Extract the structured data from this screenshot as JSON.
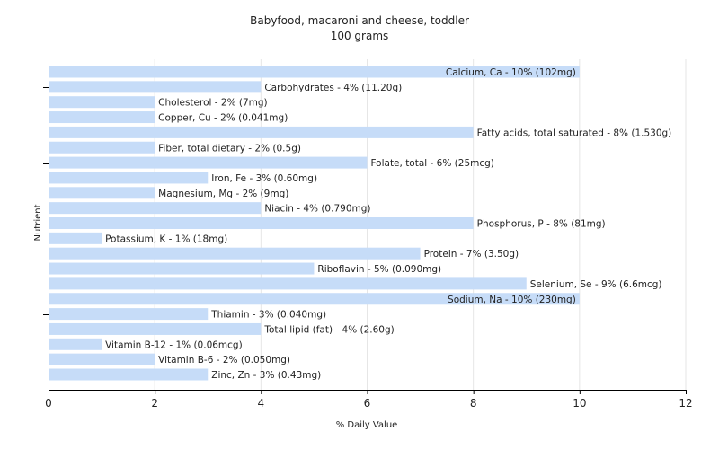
{
  "chart_data": {
    "type": "bar",
    "orientation": "horizontal",
    "title": "Babyfood, macaroni and cheese, toddler",
    "subtitle": "100 grams",
    "xlabel": "% Daily Value",
    "ylabel": "Nutrient",
    "xlim": [
      0,
      12
    ],
    "xticks": [
      "0",
      "2",
      "4",
      "6",
      "8",
      "10",
      "12"
    ],
    "grid": true,
    "bar_color": "#c6dcf8",
    "categories": [
      "Calcium, Ca",
      "Carbohydrates",
      "Cholesterol",
      "Copper, Cu",
      "Fatty acids, total saturated",
      "Fiber, total dietary",
      "Folate, total",
      "Iron, Fe",
      "Magnesium, Mg",
      "Niacin",
      "Phosphorus, P",
      "Potassium, K",
      "Protein",
      "Riboflavin",
      "Selenium, Se",
      "Sodium, Na",
      "Thiamin",
      "Total lipid (fat)",
      "Vitamin B-12",
      "Vitamin B-6",
      "Zinc, Zn"
    ],
    "values": [
      10,
      4,
      2,
      2,
      8,
      2,
      6,
      3,
      2,
      4,
      8,
      1,
      7,
      5,
      9,
      10,
      3,
      4,
      1,
      2,
      3
    ],
    "labels": [
      "Calcium, Ca - 10% (102mg)",
      "Carbohydrates - 4% (11.20g)",
      "Cholesterol - 2% (7mg)",
      "Copper, Cu - 2% (0.041mg)",
      "Fatty acids, total saturated - 8% (1.530g)",
      "Fiber, total dietary - 2% (0.5g)",
      "Folate, total - 6% (25mcg)",
      "Iron, Fe - 3% (0.60mg)",
      "Magnesium, Mg - 2% (9mg)",
      "Niacin - 4% (0.790mg)",
      "Phosphorus, P - 8% (81mg)",
      "Potassium, K - 1% (18mg)",
      "Protein - 7% (3.50g)",
      "Riboflavin - 5% (0.090mg)",
      "Selenium, Se - 9% (6.6mcg)",
      "Sodium, Na - 10% (230mg)",
      "Thiamin - 3% (0.040mg)",
      "Total lipid (fat) - 4% (2.60g)",
      "Vitamin B-12 - 1% (0.06mcg)",
      "Vitamin B-6 - 2% (0.050mg)",
      "Zinc, Zn - 3% (0.43mg)"
    ]
  }
}
